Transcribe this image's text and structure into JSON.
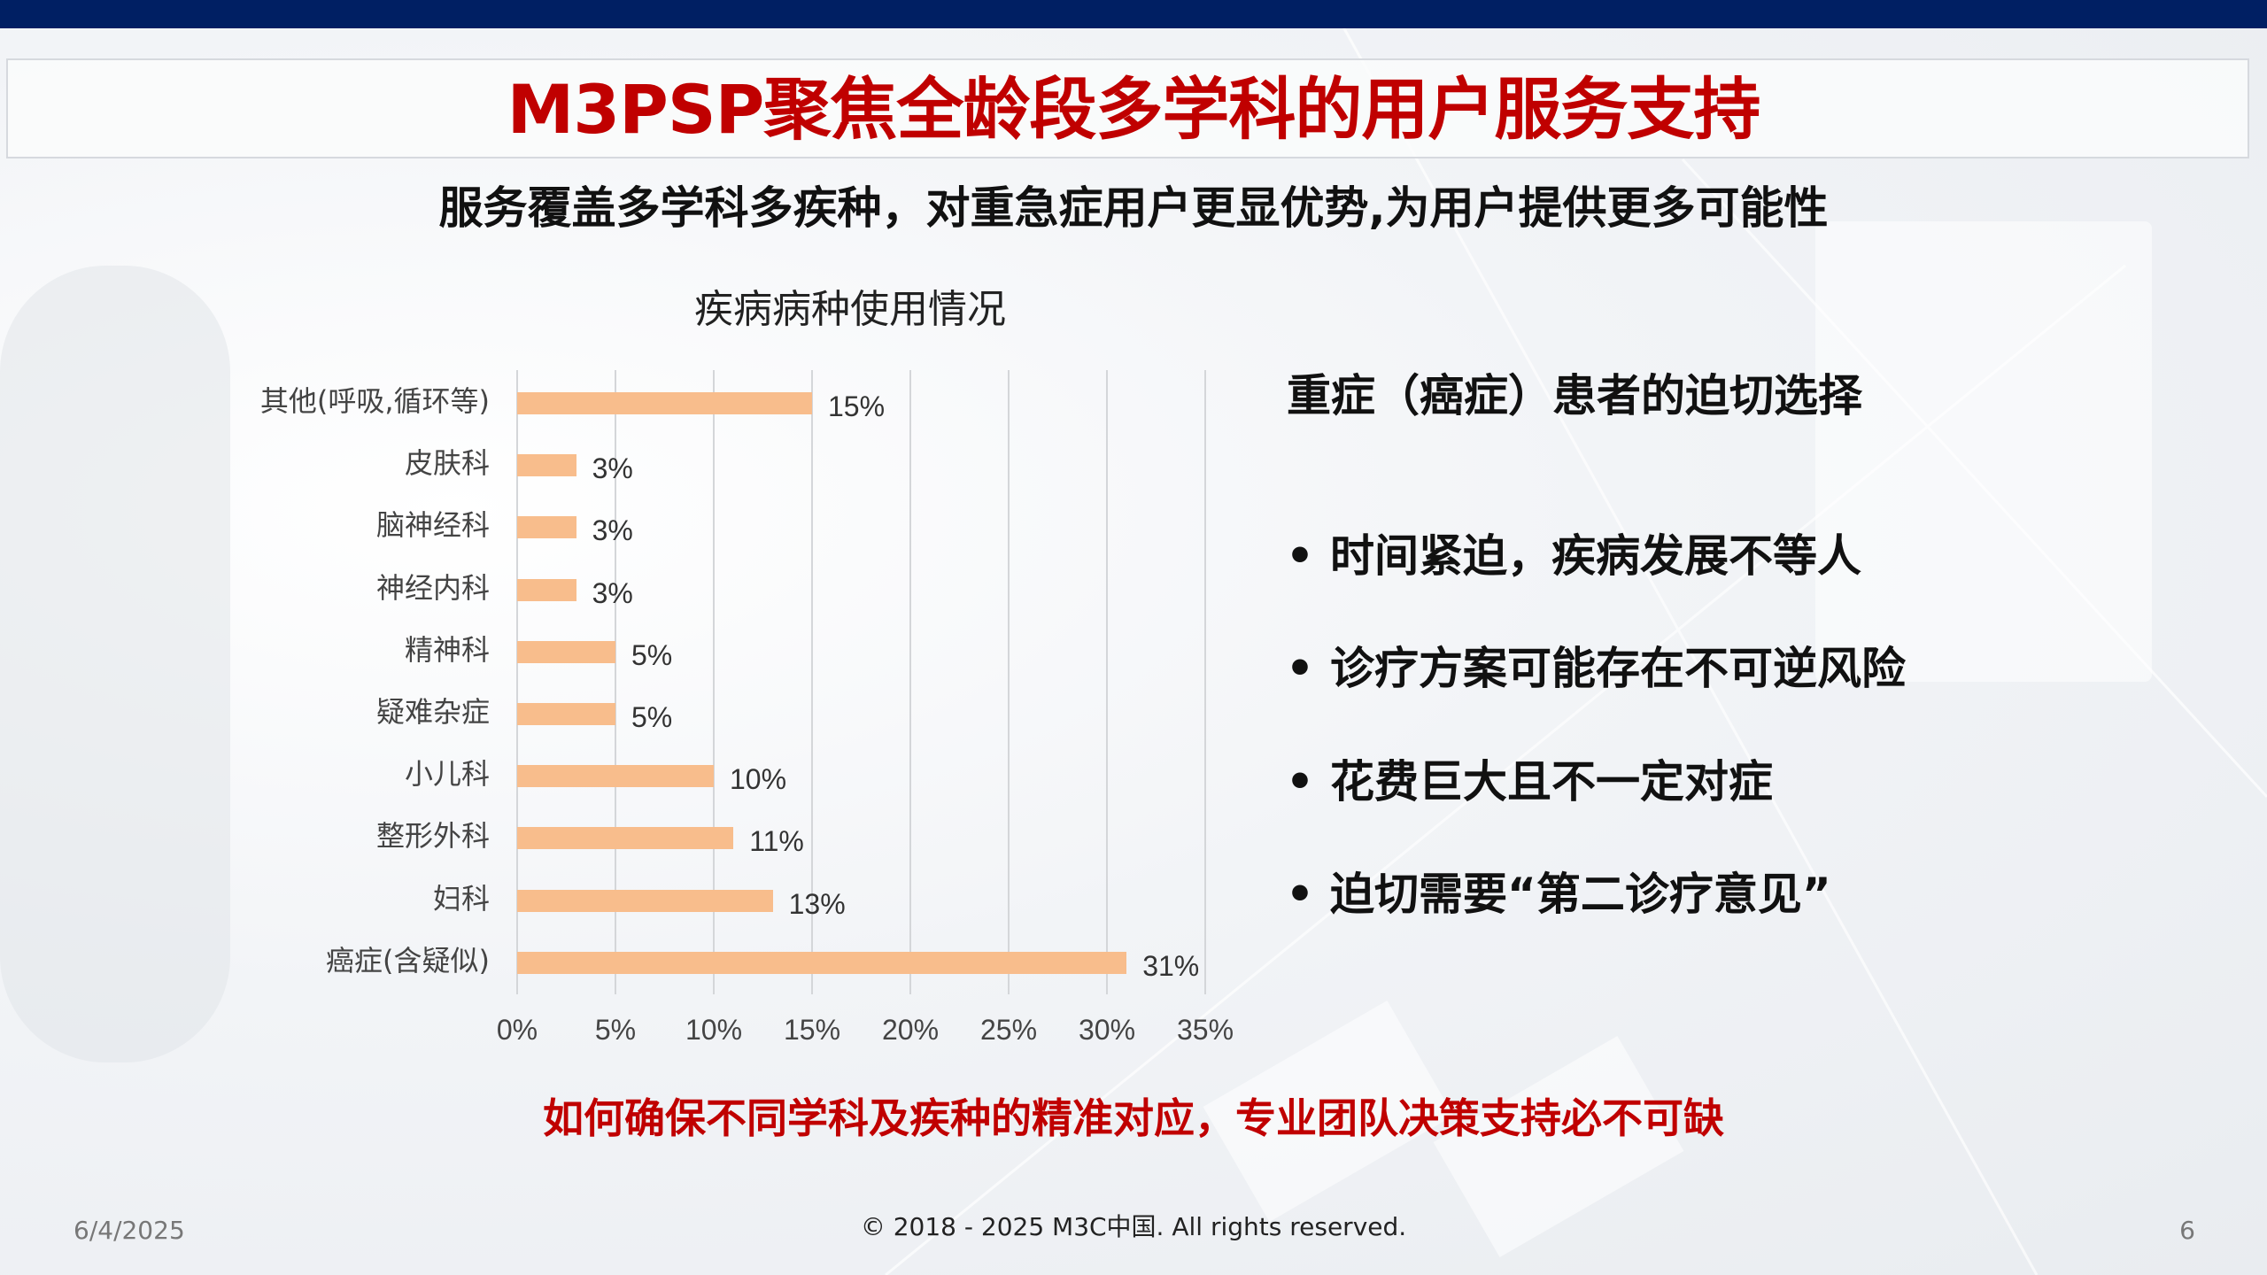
{
  "slide": {
    "title": "M3PSP聚焦全龄段多学科的用户服务支持",
    "subtitle": "服务覆盖多学科多疾种，对重急症用户更显优势,为用户提供更多可能性",
    "conclusion": "如何确保不同学科及疾种的精准对应，专业团队决策支持必不可缺"
  },
  "panel": {
    "heading": "重症（癌症）患者的迫切选择",
    "bullet_glyph": "•",
    "bullets": [
      "时间紧迫，疾病发展不等人",
      "诊疗方案可能存在不可逆风险",
      "花费巨大且不一定对症",
      "迫切需要“第二诊疗意见”"
    ]
  },
  "footer": {
    "date": "6/4/2025",
    "copyright": "© 2018 - 2025 M3C中国. All rights reserved.",
    "page_number": "6"
  },
  "colors": {
    "top_bar": "#001f63",
    "title_red": "#c00000",
    "bar_fill": "#f8bd8c",
    "gridline": "#d4d6d9"
  },
  "chart_data": {
    "type": "bar",
    "orientation": "horizontal",
    "title": "疾病病种使用情况",
    "xlabel": "",
    "ylabel": "",
    "categories": [
      "其他(呼吸,循环等)",
      "皮肤科",
      "脑神经科",
      "神经内科",
      "精神科",
      "疑难杂症",
      "小儿科",
      "整形外科",
      "妇科",
      "癌症(含疑似)"
    ],
    "values": [
      15,
      3,
      3,
      3,
      5,
      5,
      10,
      11,
      13,
      31
    ],
    "value_labels": [
      "15%",
      "3%",
      "3%",
      "3%",
      "5%",
      "5%",
      "10%",
      "11%",
      "13%",
      "31%"
    ],
    "xlim": [
      0,
      35
    ],
    "x_ticks": [
      "0%",
      "5%",
      "10%",
      "15%",
      "20%",
      "25%",
      "30%",
      "35%"
    ],
    "grid": true,
    "legend": null
  }
}
